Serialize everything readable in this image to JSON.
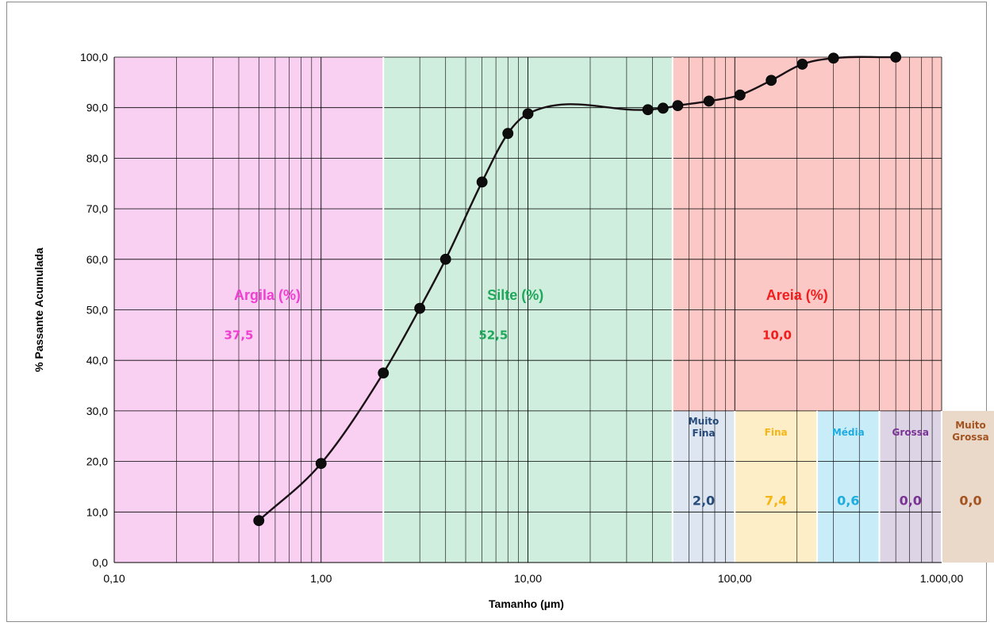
{
  "chart_data": {
    "type": "scatter",
    "title": "",
    "xlabel": "Tamanho (µm)",
    "ylabel": "% Passante Acumulada",
    "xscale": "log",
    "xlim": [
      0.1,
      1000
    ],
    "ylim": [
      0,
      100
    ],
    "grid": true,
    "x_tick_labels": [
      "0,10",
      "1,00",
      "10,00",
      "100,00",
      "1.000,00"
    ],
    "x_tick_values": [
      0.1,
      1,
      10,
      100,
      1000
    ],
    "y_tick_labels": [
      "0,0",
      "10,0",
      "20,0",
      "30,0",
      "40,0",
      "50,0",
      "60,0",
      "70,0",
      "80,0",
      "90,0",
      "100,0"
    ],
    "y_tick_values": [
      0,
      10,
      20,
      30,
      40,
      50,
      60,
      70,
      80,
      90,
      100
    ],
    "series": [
      {
        "x": [
          0.5,
          1,
          2,
          3,
          4,
          6,
          8,
          10,
          38,
          45,
          53,
          75,
          106,
          150,
          212,
          300,
          600
        ],
        "y": [
          8.3,
          19.6,
          37.5,
          50.3,
          60.0,
          75.3,
          84.9,
          88.8,
          89.6,
          89.9,
          90.4,
          91.3,
          92.5,
          95.4,
          98.6,
          99.8,
          100.0
        ],
        "color": "#0d0d0d"
      }
    ],
    "zones": [
      {
        "label": "Argila (%)",
        "value": "37,5",
        "from": 0.1,
        "to": 2,
        "fill": "#f9d0f2",
        "text_color": "#ee3fd0"
      },
      {
        "label": "Silte (%)",
        "value": "52,5",
        "from": 2,
        "to": 50,
        "fill": "#cfeedd",
        "text_color": "#1fa85b"
      },
      {
        "label": "Areia (%)",
        "value": "10,0",
        "from": 50,
        "to": 1000,
        "fill": "#fbc8c5",
        "text_color": "#f21d1d"
      }
    ],
    "sand_subdivisions": [
      {
        "label": "Muito Fina",
        "value": "2,0",
        "from": 50,
        "to": 100,
        "fill": "#dde6f1",
        "text_color": "#264a7a"
      },
      {
        "label": "Fina",
        "value": "7,4",
        "from": 100,
        "to": 250,
        "fill": "#fdeec7",
        "text_color": "#f5b615"
      },
      {
        "label": "Média",
        "value": "0,6",
        "from": 250,
        "to": 500,
        "fill": "#c8edf9",
        "text_color": "#1eacdf"
      },
      {
        "label": "Grossa",
        "value": "0,0",
        "from": 500,
        "to": 1000,
        "fill": "#ddd5e6",
        "text_color": "#7a3394"
      },
      {
        "label": "Muito Grossa",
        "value": "0,0",
        "from": 1000,
        "to": 2000,
        "fill": "#ead8c9",
        "text_color": "#a35420"
      }
    ],
    "sand_subdivision_top_y": 30
  }
}
